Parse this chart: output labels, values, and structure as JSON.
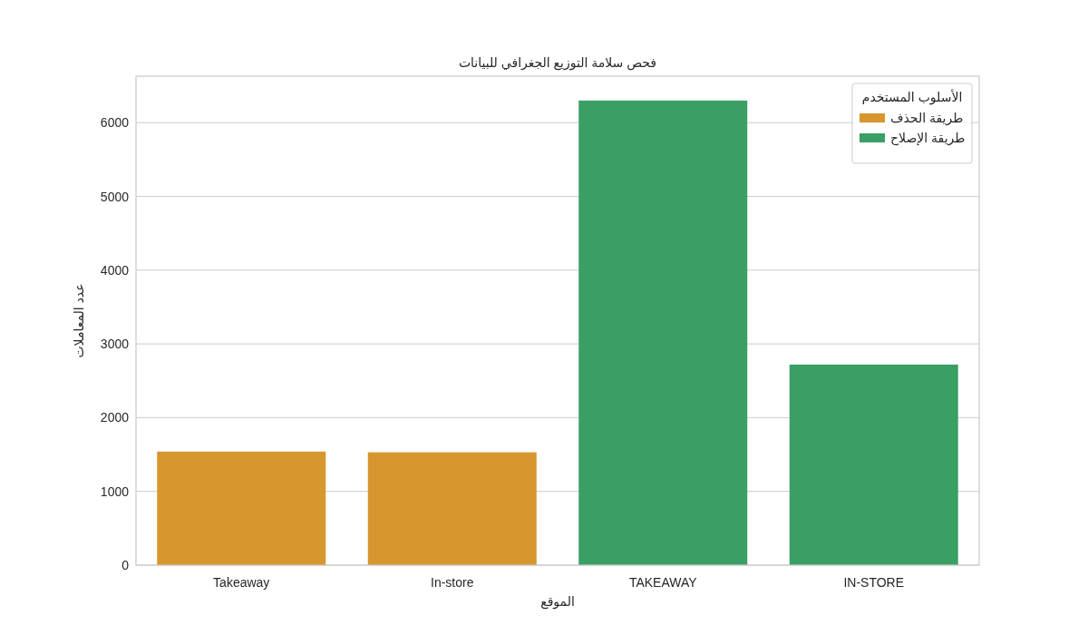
{
  "chart_data": {
    "type": "bar",
    "title": "فحص سلامة التوزيع الجغرافي للبيانات",
    "xlabel": "الموقع",
    "ylabel": "عدد المعاملات",
    "legend_title": "الأسلوب المستخدم",
    "categories": [
      "Takeaway",
      "In-store",
      "TAKEAWAY",
      "IN-STORE"
    ],
    "series": [
      {
        "name": "طريقة الحذف",
        "color": "#d8962e",
        "values": [
          1540,
          1530,
          null,
          null
        ]
      },
      {
        "name": "طريقة الإصلاح",
        "color": "#3a9f65",
        "values": [
          null,
          null,
          6300,
          2720
        ]
      }
    ],
    "ylim": [
      0,
      6630
    ],
    "yticks": [
      0,
      1000,
      2000,
      3000,
      4000,
      5000,
      6000
    ],
    "grid": "y",
    "legend": "top right"
  }
}
